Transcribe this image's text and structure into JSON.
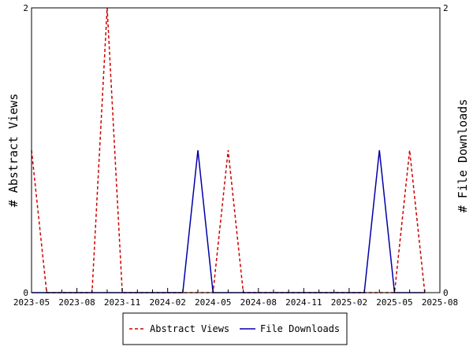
{
  "chart_data": {
    "type": "line",
    "title": "",
    "xlabel": "",
    "ylabel": "# Abstract Views",
    "ylabel_right": "# File Downloads",
    "x_ticks": [
      "2023-05",
      "2023-08",
      "2023-11",
      "2024-02",
      "2024-05",
      "2024-08",
      "2024-11",
      "2025-02",
      "2025-05",
      "2025-08"
    ],
    "ylim": [
      0,
      2
    ],
    "y_ticks": [
      "0",
      "2"
    ],
    "y_ticks_right": [
      "0",
      "2"
    ],
    "legend_position": "bottom",
    "series": [
      {
        "name": "Abstract Views",
        "color": "#cc0000",
        "style": "dashed",
        "points": [
          {
            "x": "2023-05",
            "y": 1
          },
          {
            "x": "2023-06",
            "y": 0
          },
          {
            "x": "2023-09",
            "y": 0
          },
          {
            "x": "2023-10",
            "y": 2
          },
          {
            "x": "2023-11",
            "y": 0
          },
          {
            "x": "2024-05",
            "y": 0
          },
          {
            "x": "2024-06",
            "y": 1
          },
          {
            "x": "2024-07",
            "y": 0
          },
          {
            "x": "2025-05",
            "y": 0
          },
          {
            "x": "2025-06",
            "y": 1
          },
          {
            "x": "2025-07",
            "y": 0
          }
        ]
      },
      {
        "name": "File Downloads",
        "color": "#0000aa",
        "style": "solid",
        "points": [
          {
            "x": "2023-05",
            "y": 0
          },
          {
            "x": "2024-03",
            "y": 0
          },
          {
            "x": "2024-04",
            "y": 1
          },
          {
            "x": "2024-05",
            "y": 0
          },
          {
            "x": "2025-03",
            "y": 0
          },
          {
            "x": "2025-04",
            "y": 1
          },
          {
            "x": "2025-05",
            "y": 0
          },
          {
            "x": "2025-07",
            "y": 0
          }
        ]
      }
    ]
  }
}
